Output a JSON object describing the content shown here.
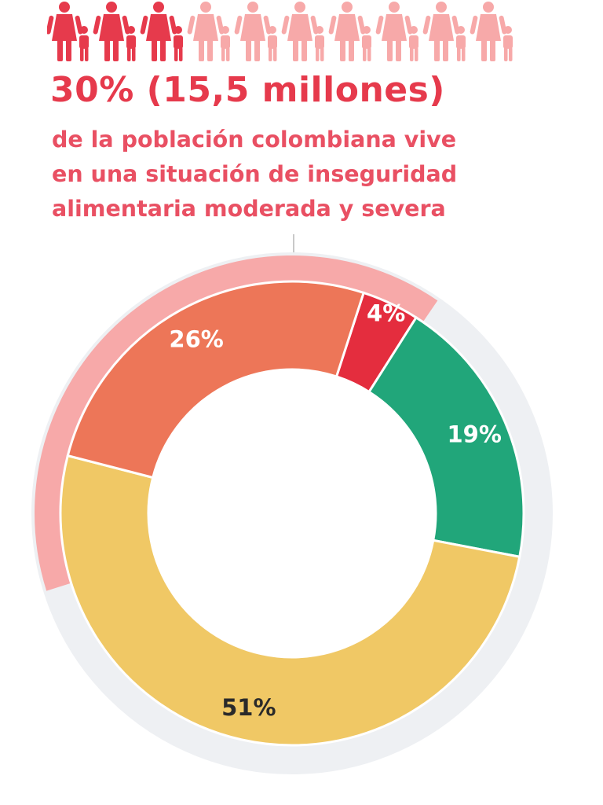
{
  "header": {
    "people_icons": [
      {
        "name": "family-icon",
        "highlighted": true
      },
      {
        "name": "family-icon",
        "highlighted": true
      },
      {
        "name": "family-icon",
        "highlighted": true
      },
      {
        "name": "family-icon",
        "highlighted": false
      },
      {
        "name": "family-icon",
        "highlighted": false
      },
      {
        "name": "family-icon",
        "highlighted": false
      },
      {
        "name": "family-icon",
        "highlighted": false
      },
      {
        "name": "family-icon",
        "highlighted": false
      },
      {
        "name": "family-icon",
        "highlighted": false
      },
      {
        "name": "family-icon",
        "highlighted": false
      }
    ],
    "headline": "30% (15,5 millones)",
    "description_lines": [
      "de la población colombiana vive",
      "en una situación de inseguridad",
      "alimentaria moderada y severa"
    ]
  },
  "colors": {
    "highlight_red": "#e63a4c",
    "faded_red": "#f7a9a9",
    "moderate_orange": "#ed7658",
    "severe_red": "#e42d3e",
    "mild_green": "#21a67a",
    "secure_yellow": "#f0c865",
    "outer_track": "#eef0f3"
  },
  "chart_data": {
    "type": "pie",
    "subtype": "donut",
    "title": "",
    "slices": [
      {
        "label": "4%",
        "value": 4,
        "color": "#e42d3e",
        "label_color": "#ffffff"
      },
      {
        "label": "19%",
        "value": 19,
        "color": "#21a67a",
        "label_color": "#ffffff"
      },
      {
        "label": "51%",
        "value": 51,
        "color": "#f0c865",
        "label_color": "#2a2a2a"
      },
      {
        "label": "26%",
        "value": 26,
        "color": "#ed7658",
        "label_color": "#ffffff"
      }
    ],
    "highlight_arc": {
      "covers": [
        "26%",
        "4%"
      ],
      "total": 30,
      "color": "#f7a9a9"
    }
  }
}
